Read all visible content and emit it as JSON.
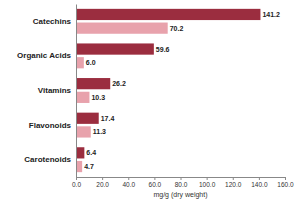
{
  "chart_data": {
    "type": "bar",
    "orientation": "horizontal",
    "x_label": "mg/g (dry weight)",
    "categories": [
      "Catechins",
      "Organic Acids",
      "Vitamins",
      "Flavonoids",
      "Carotenoids"
    ],
    "series": [
      {
        "color": "#9b2d3f",
        "values": [
          141.2,
          59.6,
          26.2,
          17.4,
          6.4
        ],
        "value_labels": [
          "141.2",
          "59.6",
          "26.2",
          "17.4",
          "6.4"
        ]
      },
      {
        "color": "#e8a2ac",
        "values": [
          70.2,
          6.0,
          10.3,
          11.3,
          4.7
        ],
        "value_labels": [
          "70.2",
          "6.0",
          "10.3",
          "11.3",
          "4.7"
        ]
      }
    ],
    "xlim": [
      0,
      160
    ],
    "xticks": [
      {
        "value": 0,
        "label": "0.0"
      },
      {
        "value": 20,
        "label": "20.0"
      },
      {
        "value": 40,
        "label": "40.0"
      },
      {
        "value": 60,
        "label": "60.0"
      },
      {
        "value": 80,
        "label": "80.0"
      },
      {
        "value": 100,
        "label": "100.0"
      },
      {
        "value": 120,
        "label": "120.0"
      },
      {
        "value": 140,
        "label": "140.0"
      },
      {
        "value": 160,
        "label": "160.0"
      }
    ],
    "grid": false,
    "data_labels": true
  }
}
